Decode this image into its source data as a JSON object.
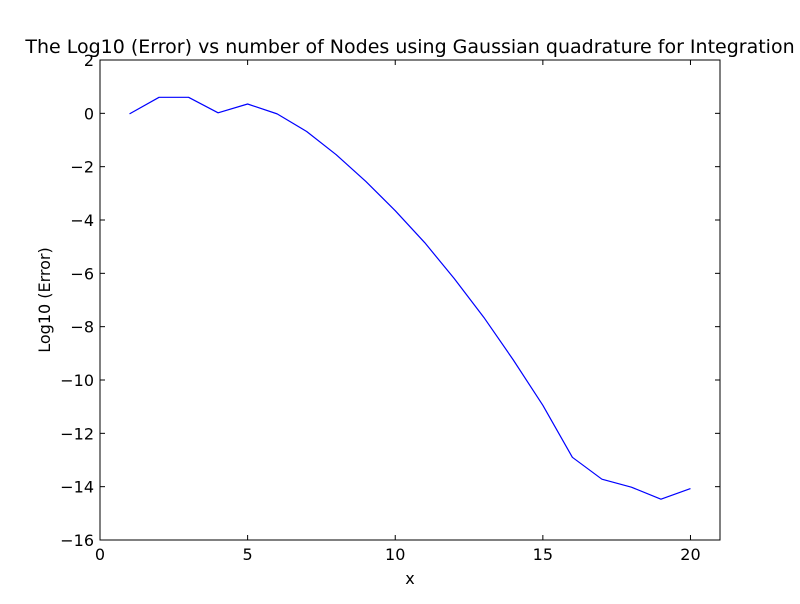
{
  "chart_data": {
    "type": "line",
    "title": "The Log10 (Error) vs number of Nodes using Gaussian quadrature for Integration",
    "xlabel": "x",
    "ylabel": "Log10 (Error)",
    "xlim": [
      0,
      21
    ],
    "ylim": [
      -16,
      2
    ],
    "x_ticks": [
      0,
      5,
      10,
      15,
      20
    ],
    "y_ticks": [
      2,
      0,
      -2,
      -4,
      -6,
      -8,
      -10,
      -12,
      -14,
      -16
    ],
    "x_tick_labels": [
      "0",
      "5",
      "10",
      "15",
      "20"
    ],
    "y_tick_labels": [
      "2",
      "0",
      "−2",
      "−4",
      "−6",
      "−8",
      "−10",
      "−12",
      "−14",
      "−16"
    ],
    "grid": false,
    "series": [
      {
        "color": "#0000ff",
        "x": [
          1,
          2,
          3,
          4,
          5,
          6,
          7,
          8,
          9,
          10,
          11,
          12,
          13,
          14,
          15,
          16,
          17,
          18,
          19,
          20
        ],
        "y": [
          -0.02,
          0.6,
          0.6,
          0.02,
          0.35,
          -0.02,
          -0.68,
          -1.55,
          -2.55,
          -3.65,
          -4.85,
          -6.2,
          -7.65,
          -9.25,
          -10.95,
          -12.9,
          -13.72,
          -14.02,
          -14.47,
          -14.07
        ]
      }
    ]
  }
}
